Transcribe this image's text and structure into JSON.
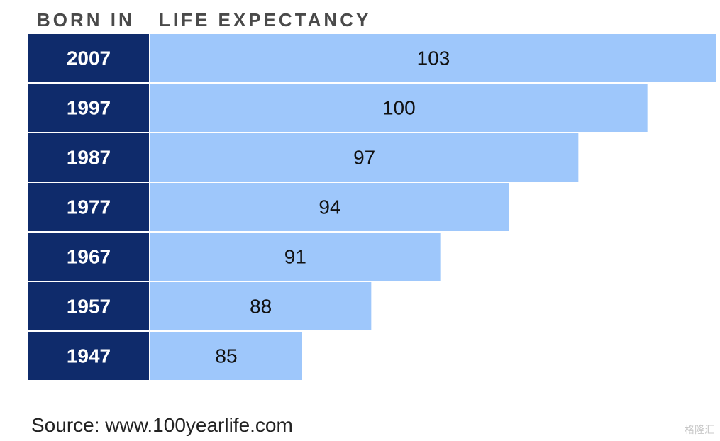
{
  "headers": {
    "born_in": "BORN IN",
    "life_expectancy": "LIFE EXPECTANCY"
  },
  "chart_data": {
    "type": "bar",
    "orientation": "horizontal",
    "categories": [
      "2007",
      "1997",
      "1987",
      "1977",
      "1967",
      "1957",
      "1947"
    ],
    "values": [
      103,
      100,
      97,
      94,
      91,
      88,
      85
    ],
    "xlabel": "LIFE EXPECTANCY",
    "ylabel": "BORN IN",
    "data_labels": true,
    "grid": false
  },
  "source": "Source: www.100yearlife.com",
  "watermark": "格隆汇",
  "colors": {
    "year_cell": "#0f2b6b",
    "bar": "#9ec7fb",
    "header_text": "#4a4a4a"
  }
}
